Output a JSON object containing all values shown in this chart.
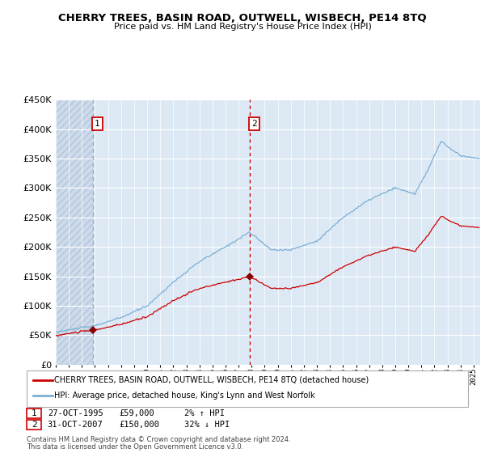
{
  "title": "CHERRY TREES, BASIN ROAD, OUTWELL, WISBECH, PE14 8TQ",
  "subtitle": "Price paid vs. HM Land Registry's House Price Index (HPI)",
  "legend_line1": "CHERRY TREES, BASIN ROAD, OUTWELL, WISBECH, PE14 8TQ (detached house)",
  "legend_line2": "HPI: Average price, detached house, King's Lynn and West Norfolk",
  "sale1_date": "27-OCT-1995",
  "sale1_price": "£59,000",
  "sale1_hpi": "2% ↑ HPI",
  "sale2_date": "31-OCT-2007",
  "sale2_price": "£150,000",
  "sale2_hpi": "32% ↓ HPI",
  "footnote1": "Contains HM Land Registry data © Crown copyright and database right 2024.",
  "footnote2": "This data is licensed under the Open Government Licence v3.0.",
  "sale1_year": 1995.83,
  "sale1_value": 59000,
  "sale2_year": 2007.83,
  "sale2_value": 150000,
  "hatch_end_year": 1995.83,
  "ylim": [
    0,
    450000
  ],
  "xlim_start": 1993.0,
  "xlim_end": 2025.5,
  "hpi_line_color": "#7bafd4",
  "price_line_color": "#cc0000",
  "sale_marker_color": "#880000",
  "vline1_color": "#999999",
  "vline2_color": "#cc0000",
  "bg_color": "#dce9f5",
  "hatch_bg_color": "#ccd9ea",
  "grid_color": "#ffffff",
  "box_color": "#cc0000"
}
